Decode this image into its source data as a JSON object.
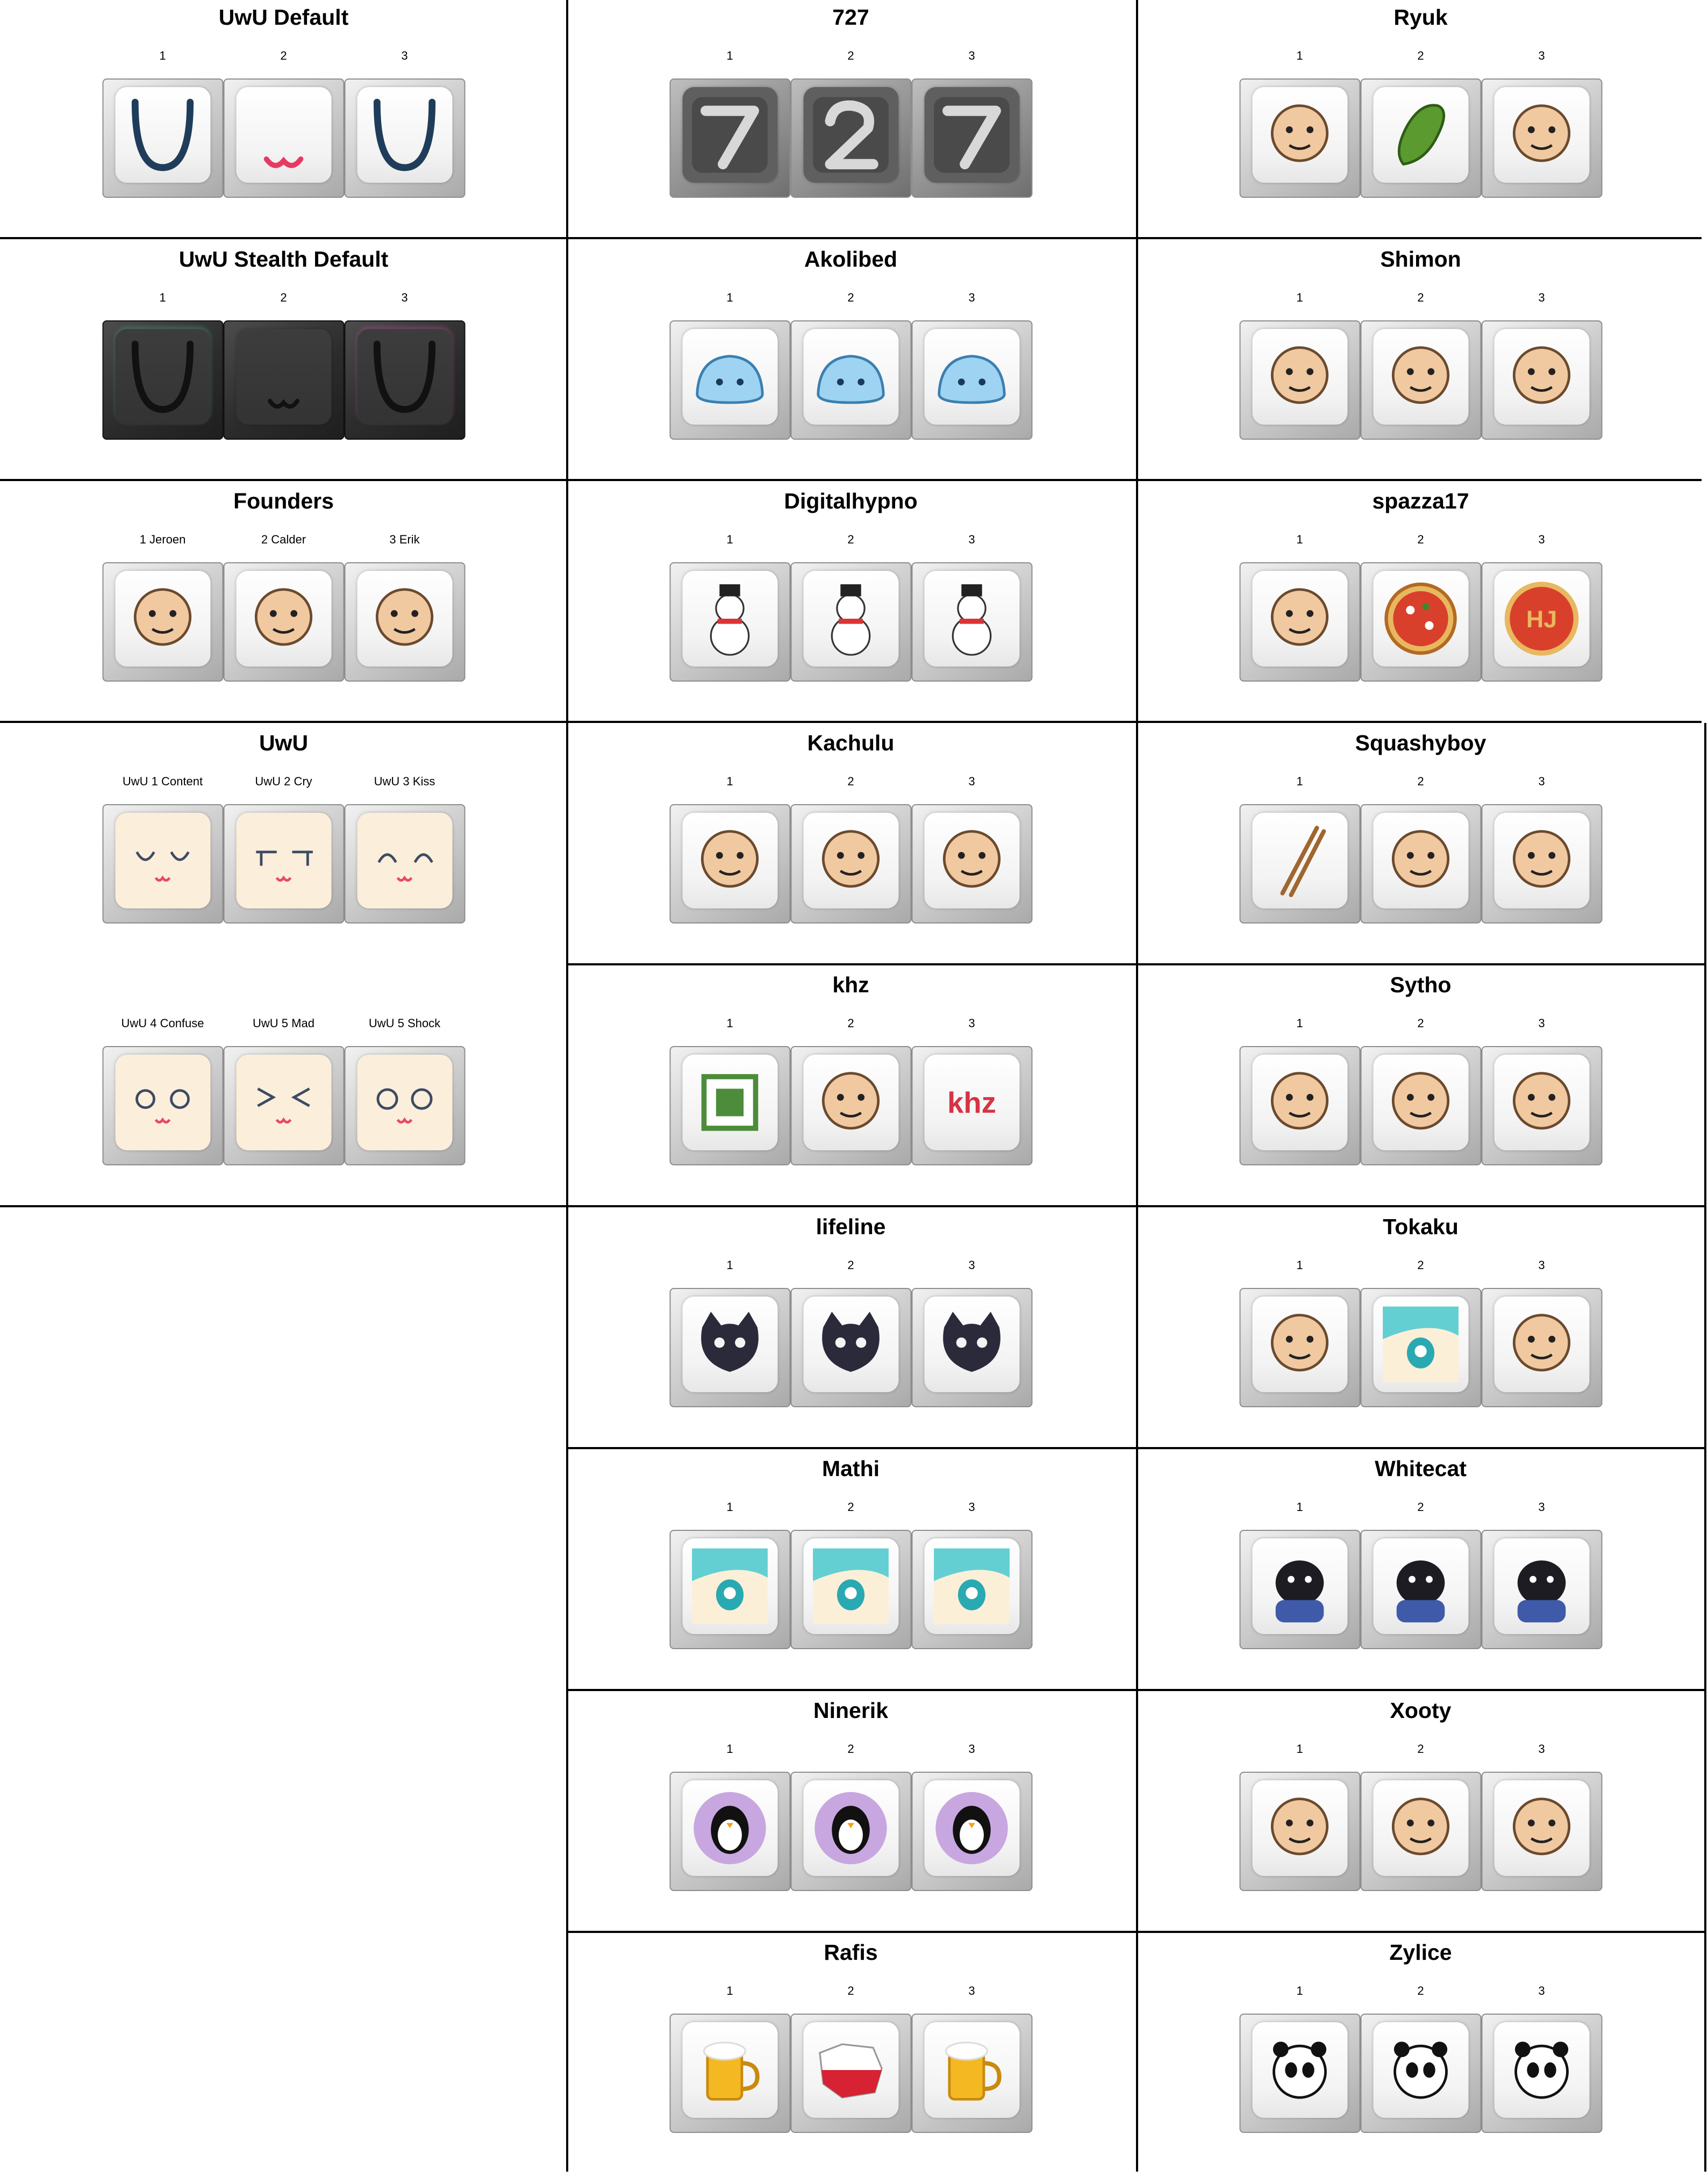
{
  "sections": [
    {
      "title": "UwU Default",
      "labels": [
        "1",
        "2",
        "3"
      ],
      "style": "plain",
      "icons": [
        "big-u-mouth-icon",
        "pink-w-mouth-icon",
        "big-u-mouth-icon"
      ]
    },
    {
      "title": "727",
      "labels": [
        "1",
        "2",
        "3"
      ],
      "style": "metal",
      "icons": [
        "number-7-wy-icon",
        "number-2-icon",
        "number-7-si-icon"
      ]
    },
    {
      "title": "Ryuk",
      "labels": [
        "1",
        "2",
        "3"
      ],
      "style": "plain",
      "icons": [
        "japanese-logo-icon",
        "pickle-icon",
        "hedgehog-icon"
      ]
    },
    {
      "title": "UwU Stealth Default",
      "labels": [
        "1",
        "2",
        "3"
      ],
      "style": "dark",
      "icons": [
        "dark-u-mouth-icon",
        "dark-w-mouth-icon",
        "dark-u-mouth-icon"
      ]
    },
    {
      "title": "Akolibed",
      "labels": [
        "1",
        "2",
        "3"
      ],
      "style": "plain",
      "icons": [
        "blue-slime-wink-icon",
        "blue-slime-left-icon",
        "blue-slime-right-icon"
      ]
    },
    {
      "title": "Shimon",
      "labels": [
        "1",
        "2",
        "3"
      ],
      "style": "plain",
      "icons": [
        "slot-machine-777-icon",
        "try-again-icon",
        "pink-infinity-card-icon"
      ]
    },
    {
      "title": "Founders",
      "labels": [
        "1 Jeroen",
        "2 Calder",
        "3 Erik"
      ],
      "style": "plain",
      "icons": [
        "founder-jeroen-avatar-icon",
        "founder-calder-avatar-icon",
        "founder-erik-avatar-icon"
      ]
    },
    {
      "title": "Digitalhypno",
      "labels": [
        "1",
        "2",
        "3"
      ],
      "style": "plain",
      "icons": [
        "snowman-icon",
        "snowman-top-hat-icon",
        "snowman-top-hat-tilted-icon"
      ]
    },
    {
      "title": "spazza17",
      "labels": [
        "1",
        "2",
        "3"
      ],
      "style": "plain",
      "icons": [
        "bearded-man-avatar-icon",
        "pizza-icon",
        "hj-badge-icon"
      ]
    },
    {
      "title": "UwU",
      "labels": [
        "UwU 1 Content",
        "UwU 2 Cry",
        "UwU 3 Kiss"
      ],
      "style": "cream",
      "icons": [
        "content-face-icon",
        "cry-face-icon",
        "kiss-face-icon"
      ],
      "labels2": [
        "UwU 4 Confuse",
        "UwU 5 Mad",
        "UwU 5 Shock"
      ],
      "icons2": [
        "confuse-face-icon",
        "mad-face-icon",
        "shock-face-icon"
      ]
    },
    {
      "title": "Kachulu",
      "labels": [
        "1",
        "2",
        "3"
      ],
      "style": "plain",
      "icons": [
        "hooded-girl-bite-icon",
        "hooded-girl-smile-icon",
        "hooded-girl-headphones-icon"
      ]
    },
    {
      "title": "Squashyboy",
      "labels": [
        "1",
        "2",
        "3"
      ],
      "style": "plain",
      "icons": [
        "chopsticks-icon",
        "pig-lightbulb-icon",
        "glasses-man-icon"
      ]
    },
    {
      "title": "khz",
      "labels": [
        "1",
        "2",
        "3"
      ],
      "style": "plain",
      "icons": [
        "chip-icon",
        "hand-gesture-icon",
        "khz-logo-icon"
      ]
    },
    {
      "title": "Sytho",
      "labels": [
        "1",
        "2",
        "3"
      ],
      "style": "plain",
      "icons": [
        "medicine-jar-icon",
        "molecule-heart-icon",
        "pill-pack-icon"
      ]
    },
    {
      "title": "lifeline",
      "labels": [
        "1",
        "2",
        "3"
      ],
      "style": "plain",
      "icons": [
        "black-cat-open-mouth-icon",
        "black-cat-smile-icon",
        "black-cat-cry-icon"
      ]
    },
    {
      "title": "Tokaku",
      "labels": [
        "1",
        "2",
        "3"
      ],
      "style": "plain",
      "icons": [
        "number-1-badge-icon",
        "anime-boy-icon",
        "number-2-badge-icon"
      ]
    },
    {
      "title": "Mathi",
      "labels": [
        "1",
        "2",
        "3"
      ],
      "style": "plain",
      "icons": [
        "anime-eye-left-icon",
        "anime-face-center-icon",
        "anime-eye-right-icon"
      ]
    },
    {
      "title": "Whitecat",
      "labels": [
        "1",
        "2",
        "3"
      ],
      "style": "plain",
      "icons": [
        "black-dog-hoodie-icon",
        "black-dog-mic-icon",
        "black-dog-tongue-icon"
      ]
    },
    {
      "title": "Ninerik",
      "labels": [
        "1",
        "2",
        "3"
      ],
      "style": "plain",
      "icons": [
        "penguin-icon",
        "penguin-wave-icon",
        "penguin-rose-icon"
      ]
    },
    {
      "title": "Xooty",
      "labels": [
        "1",
        "2",
        "3"
      ],
      "style": "plain",
      "icons": [
        "green-bunny-icon",
        "white-bird-icon",
        "brown-bear-girl-icon"
      ]
    },
    {
      "title": "Rafis",
      "labels": [
        "1",
        "2",
        "3"
      ],
      "style": "plain",
      "icons": [
        "beer-mug-icon",
        "poland-map-icon",
        "beer-mug-icon"
      ]
    },
    {
      "title": "Zylice",
      "labels": [
        "1",
        "2",
        "3"
      ],
      "style": "plain",
      "icons": [
        "panda-icon",
        "panda-drum-icon",
        "panda-brush-icon"
      ]
    }
  ]
}
